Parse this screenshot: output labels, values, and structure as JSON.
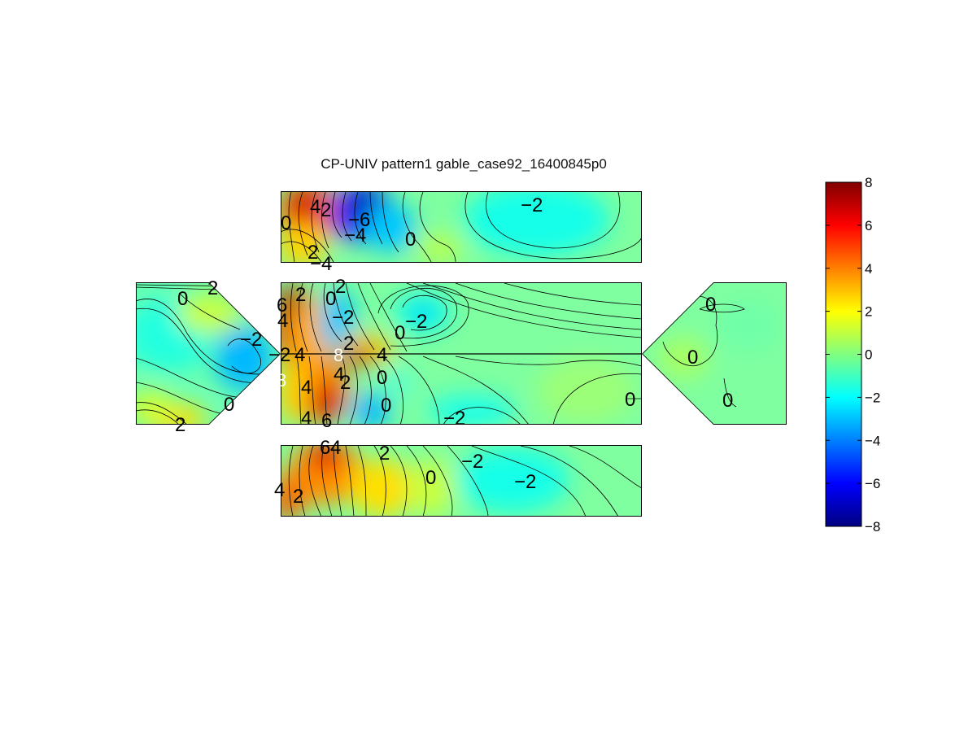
{
  "chart_data": {
    "type": "heatmap",
    "title": "CP-UNIV pattern1 gable_case92_16400845p0",
    "colormap": "jet",
    "colorbar": {
      "placement": "right",
      "range": [
        -8,
        8
      ],
      "ticks": [
        "8",
        "6",
        "4",
        "2",
        "0",
        "−2",
        "−4",
        "−6",
        "−8"
      ]
    },
    "panels": [
      {
        "name": "top-roof",
        "contour_labels": [
          "4",
          "2",
          "−6",
          "−4",
          "0",
          "0",
          "2",
          "−4",
          "−2"
        ]
      },
      {
        "name": "left-gable",
        "contour_labels": [
          "0",
          "2",
          "−2",
          "0",
          "2"
        ]
      },
      {
        "name": "main-roof",
        "contour_labels": [
          "6",
          "2",
          "0",
          "2",
          "4",
          "−2",
          "2",
          "0",
          "−2",
          "−2",
          "4",
          "8",
          "4",
          "8",
          "4",
          "0",
          "4",
          "2",
          "6",
          "4",
          "0",
          "−2",
          "0"
        ]
      },
      {
        "name": "right-gable",
        "contour_labels": [
          "0",
          "0",
          "0"
        ]
      },
      {
        "name": "bottom-wall",
        "contour_labels": [
          "6",
          "4",
          "2",
          "−2",
          "0",
          "−2",
          "4",
          "2"
        ]
      }
    ]
  }
}
